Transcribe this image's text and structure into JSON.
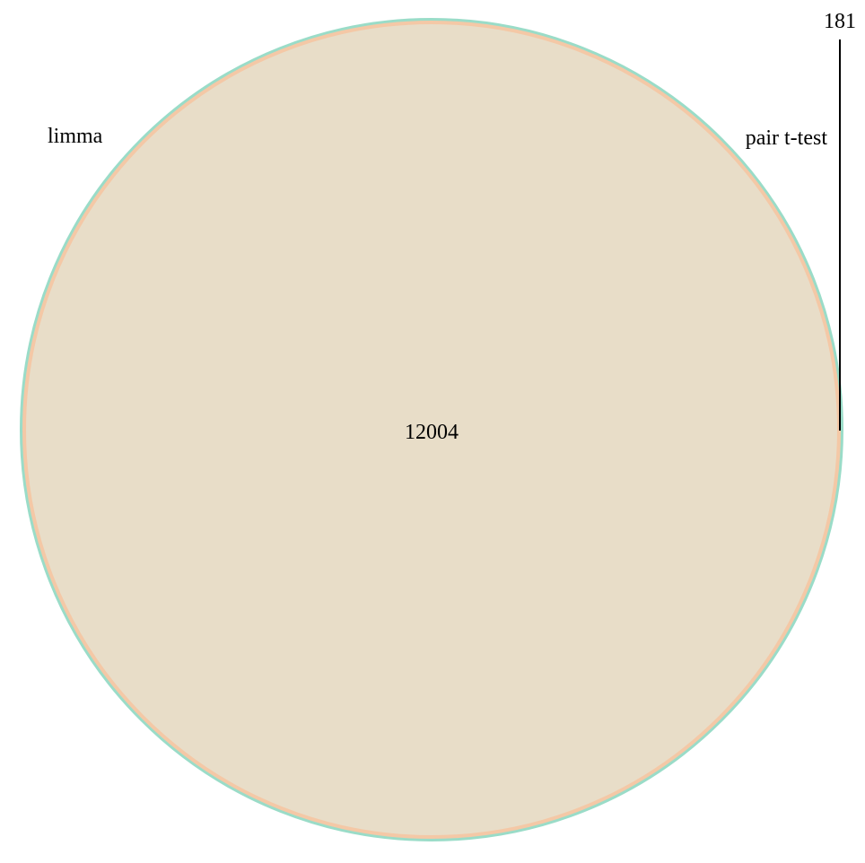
{
  "venn": {
    "sets": [
      {
        "name": "limma",
        "color": "#9adcc8"
      },
      {
        "name": "pair t-test",
        "color": "#f4c8a6"
      }
    ],
    "fill_color": "#e8ddc8",
    "regions": [
      {
        "sets": [
          "limma",
          "pair t-test"
        ],
        "count": "12004"
      },
      {
        "sets": [
          "pair t-test"
        ],
        "count": "181"
      }
    ]
  }
}
